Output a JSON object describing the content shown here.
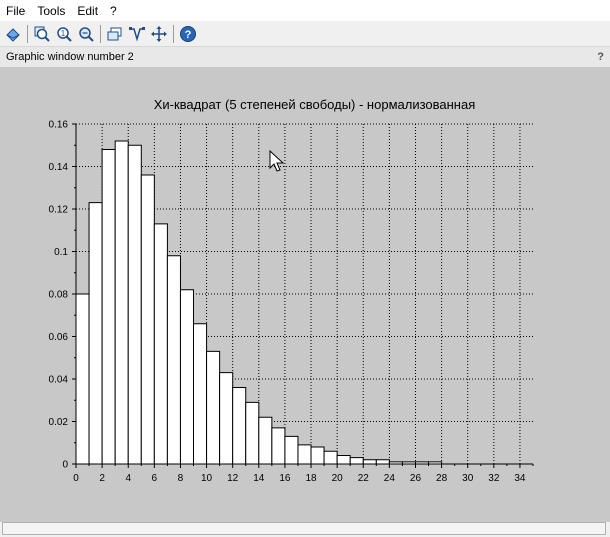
{
  "menu": {
    "items": [
      {
        "label": "File",
        "name": "menu-file"
      },
      {
        "label": "Tools",
        "name": "menu-tools"
      },
      {
        "label": "Edit",
        "name": "menu-edit"
      },
      {
        "label": "?",
        "name": "menu-help"
      }
    ]
  },
  "toolbar": {
    "buttons": [
      "rotate-icon",
      "zoom-in-icon",
      "unzoom-icon",
      "zoom-area-icon",
      "datatip-icon",
      "edit-data-icon",
      "pan-icon",
      "help-icon"
    ]
  },
  "status": {
    "window_title": "Graphic window number 2",
    "help_label": "?"
  },
  "colors": {
    "canvas_bg": "#c8c8c8",
    "bar_fill": "#ffffff",
    "bar_stroke": "#000000",
    "grid": "#000000"
  },
  "chart_data": {
    "type": "bar",
    "title": "Хи-квадрат (5 степеней свободы) - нормализованная",
    "xlabel": "",
    "ylabel": "",
    "xlim": [
      0,
      35
    ],
    "ylim": [
      0,
      0.16
    ],
    "grid": true,
    "bin_width": 1,
    "x_ticks": [
      "0",
      "2",
      "4",
      "6",
      "8",
      "10",
      "12",
      "14",
      "16",
      "18",
      "20",
      "22",
      "24",
      "26",
      "28",
      "30",
      "32",
      "34"
    ],
    "y_ticks": [
      "0",
      "0.02",
      "0.04",
      "0.06",
      "0.08",
      "0.1",
      "0.12",
      "0.14",
      "0.16"
    ],
    "bin_starts": [
      0,
      1,
      2,
      3,
      4,
      5,
      6,
      7,
      8,
      9,
      10,
      11,
      12,
      13,
      14,
      15,
      16,
      17,
      18,
      19,
      20,
      21,
      22,
      23,
      24,
      25,
      26,
      27
    ],
    "values": [
      0.08,
      0.123,
      0.148,
      0.152,
      0.15,
      0.136,
      0.113,
      0.098,
      0.082,
      0.066,
      0.053,
      0.043,
      0.036,
      0.029,
      0.022,
      0.017,
      0.013,
      0.009,
      0.008,
      0.006,
      0.004,
      0.003,
      0.002,
      0.002,
      0.001,
      0.001,
      0.001,
      0.001
    ]
  }
}
